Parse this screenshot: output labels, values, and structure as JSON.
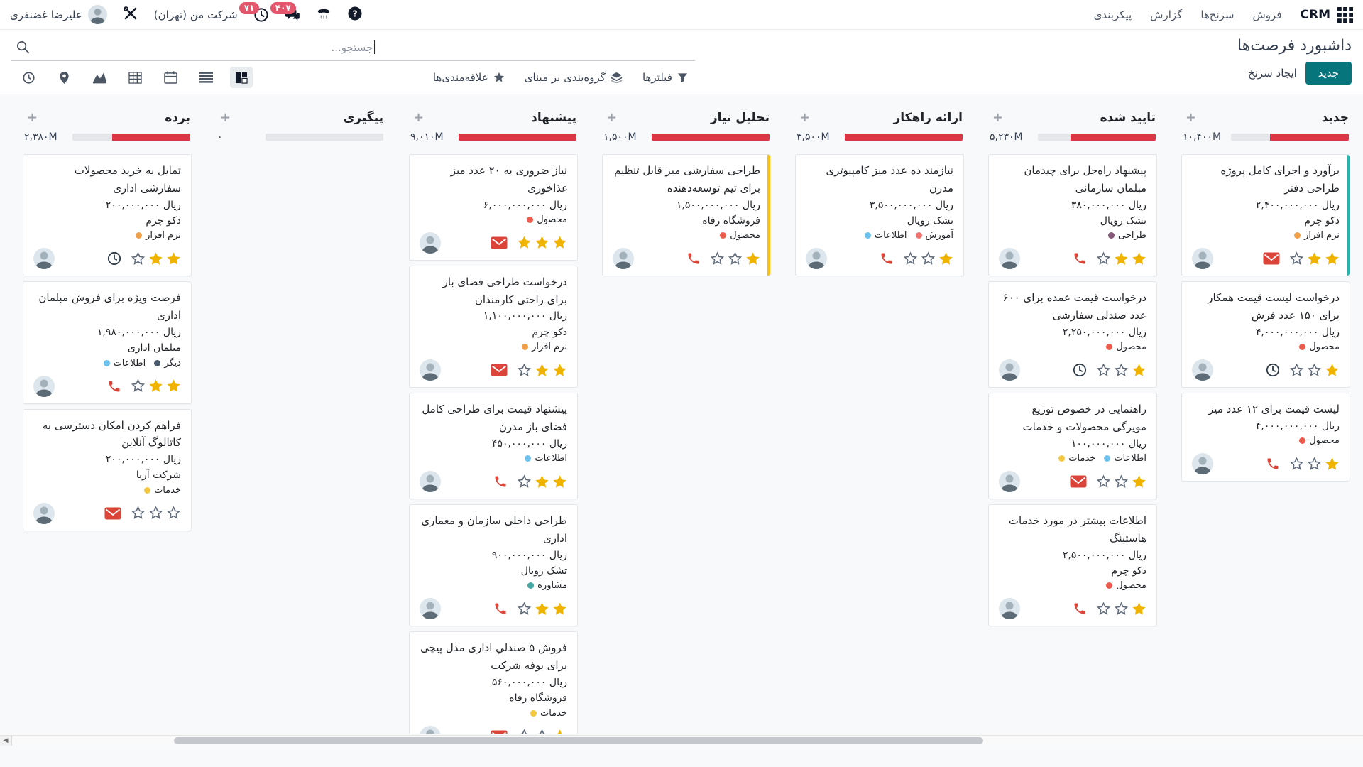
{
  "topbar": {
    "app_name": "CRM",
    "menus": [
      {
        "label": "فروش"
      },
      {
        "label": "سرنخ‌ها"
      },
      {
        "label": "گزارش"
      },
      {
        "label": "پیکربندی"
      }
    ],
    "systray": {
      "user_name": "علیرضا غضنفری",
      "company": "شرکت من (تهران)",
      "activities_count": "۷۱",
      "messages_count": "۴۰۷"
    }
  },
  "control_panel": {
    "title": "داشبورد فرصت‌ها",
    "new_button_label": "جدید",
    "generate_leads_label": "ایجاد سرنخ",
    "search_placeholder": "جستجو...",
    "filters_label": "فیلترها",
    "group_by_label": "گروه‌بندی بر مبنای",
    "favorites_label": "علاقه‌مندی‌ها"
  },
  "colors": {
    "accent_teal": "#06767c",
    "progress_red": "#dc3545",
    "progress_gray": "#e4e6ea",
    "badge_red": "#e4566c",
    "star_gold": "#f0b400"
  },
  "kanban": {
    "columns": [
      {
        "name": "جدید",
        "amount": "۱۰,۴۰۰M",
        "progress_red": 0.67,
        "cards": [
          {
            "title": "برآورد و اجرای کامل پروژه طراحی دفتر",
            "amount": "ریال ۲,۴۰۰,۰۰۰,۰۰۰",
            "partner": "دکو چرم",
            "tags": [
              {
                "label": "نرم افزار",
                "color": "#f0a04b"
              }
            ],
            "activity": "envelope",
            "stars": 2,
            "stripe": "#2ab3ab"
          },
          {
            "title": "درخواست لیست قیمت همکار برای ۱۵۰ عدد فرش",
            "amount": "ریال ۴,۰۰۰,۰۰۰,۰۰۰",
            "partner": "",
            "tags": [
              {
                "label": "محصول",
                "color": "#ee5b4e"
              }
            ],
            "activity": "clock",
            "stars": 1,
            "stripe": ""
          },
          {
            "title": "لیست قیمت برای ۱۲ عدد میز",
            "amount": "ریال ۴,۰۰۰,۰۰۰,۰۰۰",
            "partner": "",
            "tags": [
              {
                "label": "محصول",
                "color": "#ee5b4e"
              }
            ],
            "activity": "phone",
            "stars": 1,
            "stripe": ""
          }
        ]
      },
      {
        "name": "تایید شده",
        "amount": "۵,۲۳۰M",
        "progress_red": 0.72,
        "cards": [
          {
            "title": "پیشنهاد راه‌حل برای چیدمان مبلمان سازمانی",
            "amount": "ریال ۳۸۰,۰۰۰,۰۰۰",
            "partner": "تشک رویال",
            "tags": [
              {
                "label": "طراحی",
                "color": "#875a7b"
              }
            ],
            "activity": "phone",
            "stars": 2,
            "stripe": ""
          },
          {
            "title": "درخواست قیمت عمده برای ۶۰۰ عدد صندلی سفارشی",
            "amount": "ریال ۲,۲۵۰,۰۰۰,۰۰۰",
            "partner": "",
            "tags": [
              {
                "label": "محصول",
                "color": "#ee5b4e"
              }
            ],
            "activity": "clock",
            "stars": 1,
            "stripe": ""
          },
          {
            "title": "راهنمایی در خصوص توزیع مویرگی محصولات و خدمات",
            "amount": "ریال ۱۰۰,۰۰۰,۰۰۰",
            "partner": "",
            "tags": [
              {
                "label": "خدمات",
                "color": "#f3c83f"
              },
              {
                "label": "اطلاعات",
                "color": "#6cc1ed"
              }
            ],
            "activity": "envelope",
            "stars": 1,
            "stripe": ""
          },
          {
            "title": "اطلاعات بیشتر در مورد خدمات هاستینگ",
            "amount": "ریال ۲,۵۰۰,۰۰۰,۰۰۰",
            "partner": "دکو چرم",
            "tags": [
              {
                "label": "محصول",
                "color": "#ee5b4e"
              }
            ],
            "activity": "phone",
            "stars": 1,
            "stripe": ""
          }
        ]
      },
      {
        "name": "ارائه راهکار",
        "amount": "۳,۵۰۰M",
        "progress_red": 1,
        "cards": [
          {
            "title": "نیازمند ده عدد میز کامپیوتری مدرن",
            "amount": "ریال ۳,۵۰۰,۰۰۰,۰۰۰",
            "partner": "تشک رویال",
            "tags": [
              {
                "label": "اطلاعات",
                "color": "#6cc1ed"
              },
              {
                "label": "آموزش",
                "color": "#f1736f"
              }
            ],
            "activity": "phone",
            "stars": 1,
            "stripe": ""
          }
        ]
      },
      {
        "name": "تحلیل نیاز",
        "amount": "۱,۵۰۰M",
        "progress_red": 1,
        "cards": [
          {
            "title": "طراحی سفارشی میز قابل تنظیم برای تیم توسعه‌دهنده",
            "amount": "ریال ۱,۵۰۰,۰۰۰,۰۰۰",
            "partner": "فروشگاه رفاه",
            "tags": [
              {
                "label": "محصول",
                "color": "#ee5b4e"
              }
            ],
            "activity": "phone",
            "stars": 1,
            "stripe": "#f2c40f"
          }
        ]
      },
      {
        "name": "پیشنهاد",
        "amount": "۹,۰۱۰M",
        "progress_red": 1,
        "cards": [
          {
            "title": "نیاز ضروری به ۲۰ عدد میز غذاخوری",
            "amount": "ریال ۶,۰۰۰,۰۰۰,۰۰۰",
            "partner": "",
            "tags": [
              {
                "label": "محصول",
                "color": "#ee5b4e"
              }
            ],
            "activity": "envelope",
            "stars": 3,
            "stripe": ""
          },
          {
            "title": "درخواست طراحی فضای باز برای راحتی کارمندان",
            "amount": "ریال ۱,۱۰۰,۰۰۰,۰۰۰",
            "partner": "دکو چرم",
            "tags": [
              {
                "label": "نرم افزار",
                "color": "#f0a04b"
              }
            ],
            "activity": "envelope",
            "stars": 2,
            "stripe": ""
          },
          {
            "title": "پیشنهاد قیمت برای طراحی کامل فضای باز مدرن",
            "amount": "ریال ۴۵۰,۰۰۰,۰۰۰",
            "partner": "",
            "tags": [
              {
                "label": "اطلاعات",
                "color": "#6cc1ed"
              }
            ],
            "activity": "phone",
            "stars": 2,
            "stripe": ""
          },
          {
            "title": "طراحی داخلی سازمان و معماری اداری",
            "amount": "ریال ۹۰۰,۰۰۰,۰۰۰",
            "partner": "تشک رویال",
            "tags": [
              {
                "label": "مشاوره",
                "color": "#43a7a3"
              }
            ],
            "activity": "phone",
            "stars": 2,
            "stripe": ""
          },
          {
            "title": "فروش ۵ صندلي اداری مدل پیچی برای بوفه شرکت",
            "amount": "ریال ۵۶۰,۰۰۰,۰۰۰",
            "partner": "فروشگاه رفاه",
            "tags": [
              {
                "label": "خدمات",
                "color": "#f3c83f"
              }
            ],
            "activity": "envelope",
            "stars": 1,
            "stripe": ""
          }
        ]
      },
      {
        "name": "پیگیری",
        "amount": "۰",
        "progress_red": 0,
        "cards": []
      },
      {
        "name": "برده",
        "amount": "۲,۳۸۰M",
        "progress_red": 0.66,
        "cards": [
          {
            "title": "تمایل به خرید محصولات سفارشی اداری",
            "amount": "ریال ۲۰۰,۰۰۰,۰۰۰",
            "partner": "دکو چرم",
            "tags": [
              {
                "label": "نرم افزار",
                "color": "#f0a04b"
              }
            ],
            "activity": "clock",
            "stars": 2,
            "stripe": ""
          },
          {
            "title": "فرصت ویژه برای فروش مبلمان اداری",
            "amount": "ریال ۱,۹۸۰,۰۰۰,۰۰۰",
            "partner": "مبلمان اداری",
            "tags": [
              {
                "label": "اطلاعات",
                "color": "#6cc1ed"
              },
              {
                "label": "دیگر",
                "color": "#4a5a6a"
              }
            ],
            "activity": "phone",
            "stars": 2,
            "stripe": ""
          },
          {
            "title": "فراهم کردن امکان دسترسی به کاتالوگ آنلاین",
            "amount": "ریال ۲۰۰,۰۰۰,۰۰۰",
            "partner": "شرکت آریا",
            "tags": [
              {
                "label": "خدمات",
                "color": "#f3c83f"
              }
            ],
            "activity": "envelope",
            "stars": 0,
            "stripe": ""
          }
        ]
      }
    ]
  }
}
